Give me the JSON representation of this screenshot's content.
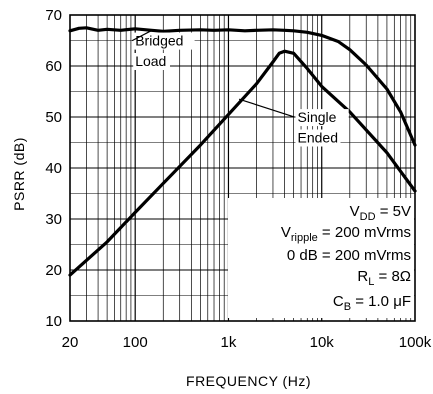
{
  "chart_data": {
    "type": "line",
    "xlabel": "FREQUENCY (Hz)",
    "ylabel": "PSRR (dB)",
    "xscale": "log",
    "xlim": [
      20,
      100000
    ],
    "ylim": [
      10,
      70
    ],
    "grid": true,
    "legend": "none",
    "x_tick_labels": [
      {
        "value": 20,
        "label": "20"
      },
      {
        "value": 100,
        "label": "100"
      },
      {
        "value": 1000,
        "label": "1k"
      },
      {
        "value": 10000,
        "label": "10k"
      },
      {
        "value": 100000,
        "label": "100k"
      }
    ],
    "y_tick_labels": [
      {
        "value": 10,
        "label": "10"
      },
      {
        "value": 20,
        "label": "20"
      },
      {
        "value": 30,
        "label": "30"
      },
      {
        "value": 40,
        "label": "40"
      },
      {
        "value": 50,
        "label": "50"
      },
      {
        "value": 60,
        "label": "60"
      },
      {
        "value": 70,
        "label": "70"
      }
    ],
    "series": [
      {
        "x": [
          20,
          25,
          30,
          40,
          50,
          70,
          100,
          150,
          200,
          300,
          500,
          700,
          1000,
          1500,
          2000,
          3000,
          4000,
          5000,
          7000,
          10000,
          15000,
          20000,
          30000,
          50000,
          70000,
          100000
        ],
        "y": [
          66.9,
          67.4,
          67.5,
          67.0,
          67.2,
          67.0,
          67.3,
          67.0,
          66.8,
          67.0,
          67.1,
          67.0,
          67.1,
          66.9,
          67.0,
          67.1,
          67.0,
          66.9,
          66.6,
          66.0,
          64.8,
          63.2,
          60.2,
          55.5,
          51.0,
          44.5
        ]
      },
      {
        "x": [
          20,
          50,
          100,
          200,
          500,
          1000,
          2000,
          3000,
          3500,
          4000,
          5000,
          7000,
          10000,
          20000,
          50000,
          100000
        ],
        "y": [
          19.0,
          25.5,
          31.3,
          37.0,
          44.5,
          50.5,
          56.5,
          60.8,
          62.5,
          62.9,
          62.5,
          59.5,
          56.0,
          51.0,
          43.0,
          35.5
        ]
      }
    ],
    "annotations": [
      {
        "text": "Bridged",
        "x": 100,
        "y": 64
      },
      {
        "text": "Load",
        "x": 100,
        "y": 60
      },
      {
        "text": "Single",
        "x": 5500,
        "y": 49
      },
      {
        "text": "Ended",
        "x": 5500,
        "y": 45
      }
    ],
    "conditions": [
      {
        "main": "V",
        "sub": "DD",
        "rest": " = 5V"
      },
      {
        "main": "V",
        "sub": "ripple",
        "rest": " = 200 mVrms"
      },
      {
        "main": "0 dB = 200 mVrms",
        "sub": "",
        "rest": ""
      },
      {
        "main": "R",
        "sub": "L",
        "rest": " = 8Ω"
      },
      {
        "main": "C",
        "sub": "B",
        "rest": " = 1.0 μF"
      }
    ]
  }
}
